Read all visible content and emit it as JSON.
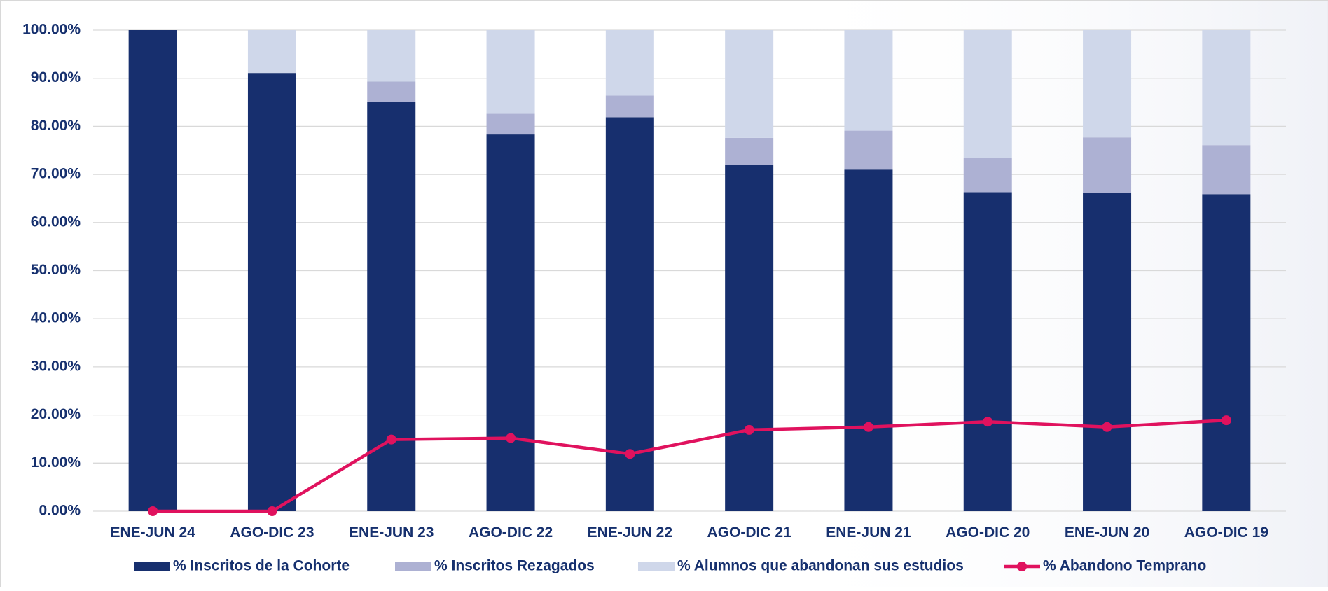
{
  "chart_data": {
    "type": "bar",
    "stacked": true,
    "categories": [
      "ENE-JUN 24",
      "AGO-DIC 23",
      "ENE-JUN 23",
      "AGO-DIC 22",
      "ENE-JUN 22",
      "AGO-DIC 21",
      "ENE-JUN 21",
      "AGO-DIC 20",
      "ENE-JUN 20",
      "AGO-DIC 19"
    ],
    "y_tick_labels": [
      "0.00%",
      "10.00%",
      "20.00%",
      "30.00%",
      "40.00%",
      "50.00%",
      "60.00%",
      "70.00%",
      "80.00%",
      "90.00%",
      "100.00%"
    ],
    "ylim": [
      0,
      100
    ],
    "grid": true,
    "legend_position": "bottom",
    "series": [
      {
        "name": "% Inscritos de la Cohorte",
        "kind": "bar",
        "color": "#172f6e",
        "values": [
          100,
          91.1,
          85.1,
          78.3,
          81.9,
          72.0,
          71.0,
          66.3,
          66.2,
          65.9
        ]
      },
      {
        "name": "% Inscritos Rezagados",
        "kind": "bar",
        "color": "#adb1d3",
        "values": [
          0,
          0,
          4.2,
          4.3,
          4.5,
          5.6,
          8.1,
          7.1,
          11.5,
          10.2
        ]
      },
      {
        "name": "% Alumnos que abandonan sus estudios",
        "kind": "bar",
        "color": "#cfd7ea",
        "values": [
          0,
          8.9,
          10.7,
          17.4,
          13.6,
          22.4,
          20.9,
          26.6,
          22.3,
          23.9
        ]
      },
      {
        "name": "% Abandono Temprano",
        "kind": "line",
        "color": "#e0125e",
        "values": [
          0,
          0,
          14.9,
          15.2,
          11.9,
          16.9,
          17.5,
          18.6,
          17.5,
          18.9
        ]
      }
    ]
  }
}
